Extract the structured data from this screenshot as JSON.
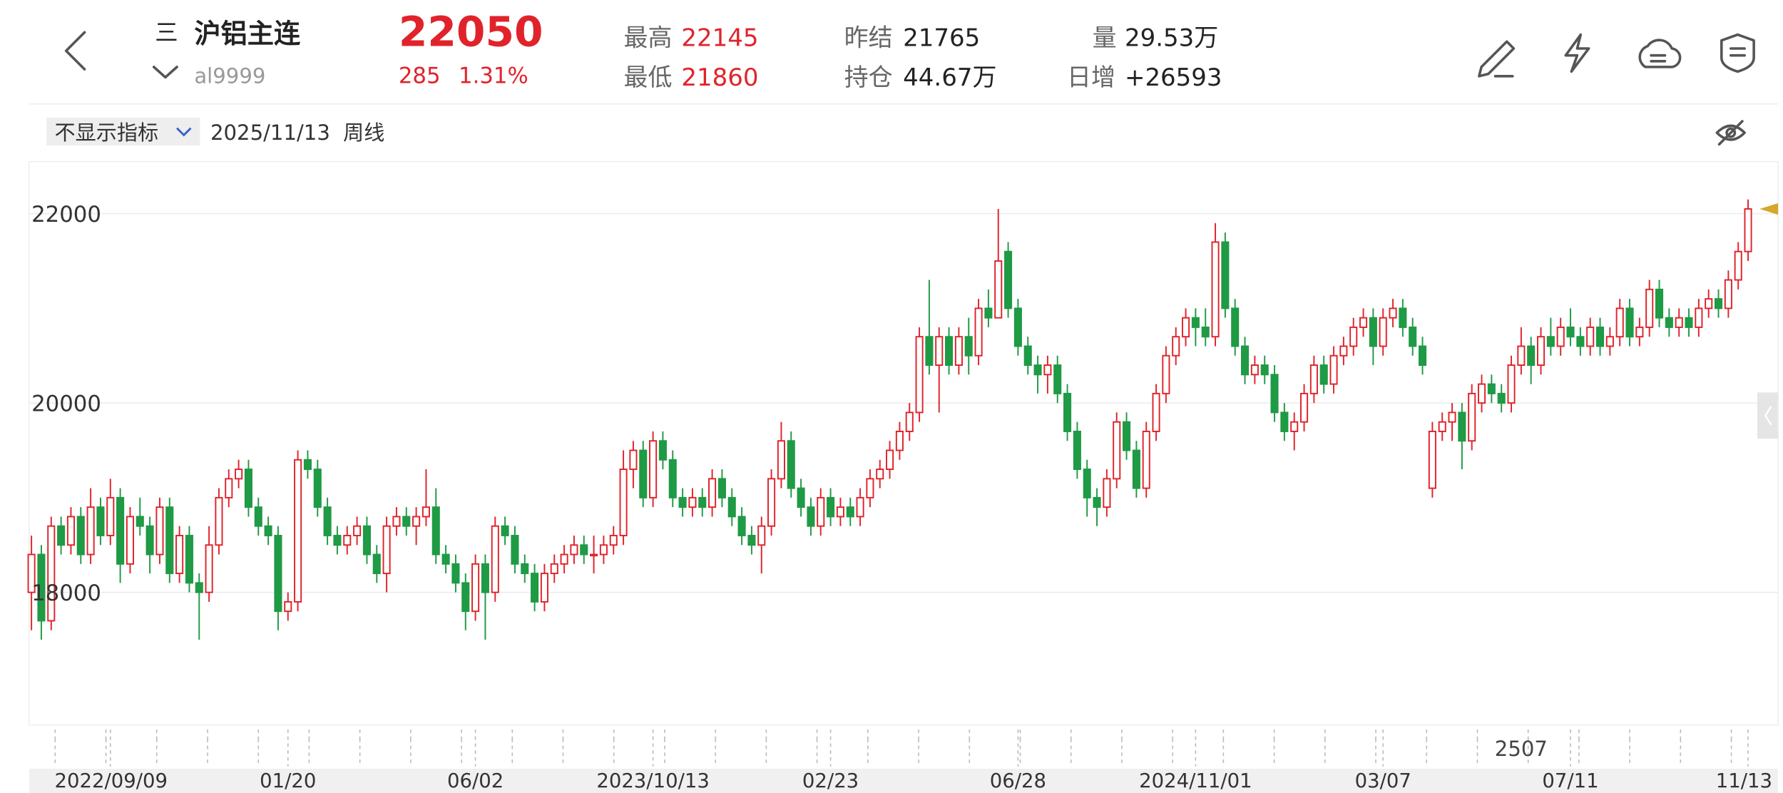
{
  "header": {
    "menu_icon": "三",
    "name": "沪铝主连",
    "code": "al9999",
    "price": 22050,
    "change": 285,
    "change_pct": "1.31%",
    "stats": [
      {
        "label": "最高",
        "value": 22145
      },
      {
        "label": "最低",
        "value": 21860
      },
      {
        "label": "昨结",
        "value": 21765
      },
      {
        "label": "持仓",
        "value": "44.67万"
      },
      {
        "label": "量",
        "value": "29.53万"
      },
      {
        "label": "日增",
        "value": "+26593"
      }
    ]
  },
  "toolbar": {
    "indicator": "不显示指标",
    "date": "2025/11/13",
    "period": "周线"
  },
  "chart_data": {
    "type": "candlestick",
    "up_color": "#e0232b",
    "down_color": "#1f9a45",
    "ylim": [
      16600,
      22550
    ],
    "yticks": [
      18000,
      20000,
      22000
    ],
    "grid": true,
    "xticks": [
      {
        "value": 8,
        "label": "2022/09/09"
      },
      {
        "value": 26,
        "label": "01/20"
      },
      {
        "value": 45,
        "label": "06/02"
      },
      {
        "value": 63,
        "label": "2023/10/13"
      },
      {
        "value": 81,
        "label": "02/23"
      },
      {
        "value": 100,
        "label": "06/28"
      },
      {
        "value": 118,
        "label": "2024/11/01"
      },
      {
        "value": 137,
        "label": "03/07"
      },
      {
        "value": 156,
        "label": "07/11"
      },
      {
        "value": 174,
        "label": "11/13"
      }
    ],
    "annotations": [
      {
        "value": 151,
        "label": "2507"
      }
    ],
    "candles": [
      [
        18000,
        18600,
        17600,
        18400
      ],
      [
        18400,
        18500,
        17500,
        17700
      ],
      [
        17700,
        18800,
        17600,
        18700
      ],
      [
        18700,
        18800,
        18400,
        18500
      ],
      [
        18500,
        18900,
        18400,
        18800
      ],
      [
        18800,
        18900,
        18300,
        18400
      ],
      [
        18400,
        19100,
        18300,
        18900
      ],
      [
        18900,
        19000,
        18500,
        18600
      ],
      [
        18600,
        19200,
        18500,
        19000
      ],
      [
        19000,
        19100,
        18100,
        18300
      ],
      [
        18300,
        18900,
        18200,
        18800
      ],
      [
        18800,
        19000,
        18600,
        18700
      ],
      [
        18700,
        18800,
        18200,
        18400
      ],
      [
        18400,
        19000,
        18300,
        18900
      ],
      [
        18900,
        19000,
        18100,
        18200
      ],
      [
        18200,
        18700,
        18100,
        18600
      ],
      [
        18600,
        18700,
        18000,
        18100
      ],
      [
        18100,
        18200,
        17500,
        18000
      ],
      [
        18000,
        18700,
        17900,
        18500
      ],
      [
        18500,
        19100,
        18400,
        19000
      ],
      [
        19000,
        19300,
        18900,
        19200
      ],
      [
        19200,
        19400,
        19100,
        19300
      ],
      [
        19300,
        19400,
        18800,
        18900
      ],
      [
        18900,
        19000,
        18600,
        18700
      ],
      [
        18700,
        18800,
        18500,
        18600
      ],
      [
        18600,
        18700,
        17600,
        17800
      ],
      [
        17800,
        18000,
        17700,
        17900
      ],
      [
        17900,
        19500,
        17800,
        19400
      ],
      [
        19400,
        19500,
        19200,
        19300
      ],
      [
        19300,
        19400,
        18800,
        18900
      ],
      [
        18900,
        19000,
        18500,
        18600
      ],
      [
        18600,
        18700,
        18400,
        18500
      ],
      [
        18500,
        18700,
        18400,
        18600
      ],
      [
        18600,
        18800,
        18500,
        18700
      ],
      [
        18700,
        18800,
        18300,
        18400
      ],
      [
        18400,
        18500,
        18100,
        18200
      ],
      [
        18200,
        18800,
        18000,
        18700
      ],
      [
        18700,
        18900,
        18600,
        18800
      ],
      [
        18800,
        18900,
        18600,
        18700
      ],
      [
        18700,
        18900,
        18500,
        18800
      ],
      [
        18800,
        19300,
        18700,
        18900
      ],
      [
        18900,
        19100,
        18300,
        18400
      ],
      [
        18400,
        18500,
        18200,
        18300
      ],
      [
        18300,
        18400,
        18000,
        18100
      ],
      [
        18100,
        18200,
        17600,
        17800
      ],
      [
        17800,
        18400,
        17700,
        18300
      ],
      [
        18300,
        18400,
        17500,
        18000
      ],
      [
        18000,
        18800,
        17900,
        18700
      ],
      [
        18700,
        18800,
        18500,
        18600
      ],
      [
        18600,
        18700,
        18200,
        18300
      ],
      [
        18300,
        18400,
        18100,
        18200
      ],
      [
        18200,
        18300,
        17800,
        17900
      ],
      [
        17900,
        18300,
        17800,
        18200
      ],
      [
        18200,
        18400,
        18100,
        18300
      ],
      [
        18300,
        18500,
        18200,
        18400
      ],
      [
        18400,
        18600,
        18300,
        18500
      ],
      [
        18500,
        18600,
        18300,
        18400
      ],
      [
        18400,
        18600,
        18200,
        18400
      ],
      [
        18400,
        18600,
        18300,
        18500
      ],
      [
        18500,
        18700,
        18400,
        18600
      ],
      [
        18600,
        19500,
        18500,
        19300
      ],
      [
        19300,
        19600,
        19100,
        19500
      ],
      [
        19500,
        19600,
        18900,
        19000
      ],
      [
        19000,
        19700,
        18900,
        19600
      ],
      [
        19600,
        19700,
        19300,
        19400
      ],
      [
        19400,
        19500,
        18900,
        19000
      ],
      [
        19000,
        19100,
        18800,
        18900
      ],
      [
        18900,
        19100,
        18800,
        19000
      ],
      [
        19000,
        19100,
        18800,
        18900
      ],
      [
        18900,
        19300,
        18800,
        19200
      ],
      [
        19200,
        19300,
        18900,
        19000
      ],
      [
        19000,
        19100,
        18700,
        18800
      ],
      [
        18800,
        18900,
        18500,
        18600
      ],
      [
        18600,
        18700,
        18400,
        18500
      ],
      [
        18500,
        18800,
        18200,
        18700
      ],
      [
        18700,
        19300,
        18600,
        19200
      ],
      [
        19200,
        19800,
        19100,
        19600
      ],
      [
        19600,
        19700,
        19000,
        19100
      ],
      [
        19100,
        19200,
        18800,
        18900
      ],
      [
        18900,
        19000,
        18600,
        18700
      ],
      [
        18700,
        19100,
        18600,
        19000
      ],
      [
        19000,
        19100,
        18700,
        18800
      ],
      [
        18800,
        19000,
        18700,
        18900
      ],
      [
        18900,
        19000,
        18700,
        18800
      ],
      [
        18800,
        19100,
        18700,
        19000
      ],
      [
        19000,
        19300,
        18900,
        19200
      ],
      [
        19200,
        19400,
        19100,
        19300
      ],
      [
        19300,
        19600,
        19200,
        19500
      ],
      [
        19500,
        19800,
        19400,
        19700
      ],
      [
        19700,
        20000,
        19600,
        19900
      ],
      [
        19900,
        20800,
        19800,
        20700
      ],
      [
        20700,
        21300,
        20300,
        20400
      ],
      [
        20400,
        20800,
        19900,
        20700
      ],
      [
        20700,
        20800,
        20300,
        20400
      ],
      [
        20400,
        20800,
        20300,
        20700
      ],
      [
        20700,
        20900,
        20300,
        20500
      ],
      [
        20500,
        21100,
        20400,
        21000
      ],
      [
        21000,
        21200,
        20800,
        20900
      ],
      [
        20900,
        22050,
        20900,
        21500
      ],
      [
        21600,
        21700,
        20900,
        21000
      ],
      [
        21000,
        21100,
        20500,
        20600
      ],
      [
        20600,
        20700,
        20300,
        20400
      ],
      [
        20400,
        20500,
        20100,
        20300
      ],
      [
        20300,
        20500,
        20100,
        20400
      ],
      [
        20400,
        20500,
        20000,
        20100
      ],
      [
        20100,
        20200,
        19600,
        19700
      ],
      [
        19700,
        19800,
        19200,
        19300
      ],
      [
        19300,
        19400,
        18800,
        19000
      ],
      [
        19000,
        19100,
        18700,
        18900
      ],
      [
        18900,
        19300,
        18800,
        19200
      ],
      [
        19200,
        19900,
        19100,
        19800
      ],
      [
        19800,
        19900,
        19400,
        19500
      ],
      [
        19500,
        19600,
        19000,
        19100
      ],
      [
        19100,
        19800,
        19000,
        19700
      ],
      [
        19700,
        20200,
        19600,
        20100
      ],
      [
        20100,
        20600,
        20000,
        20500
      ],
      [
        20500,
        20800,
        20400,
        20700
      ],
      [
        20700,
        21000,
        20600,
        20900
      ],
      [
        20900,
        21000,
        20600,
        20800
      ],
      [
        20800,
        21000,
        20600,
        20700
      ],
      [
        20700,
        21900,
        20600,
        21700
      ],
      [
        21700,
        21800,
        20900,
        21000
      ],
      [
        21000,
        21100,
        20500,
        20600
      ],
      [
        20600,
        20700,
        20200,
        20300
      ],
      [
        20300,
        20500,
        20200,
        20400
      ],
      [
        20400,
        20500,
        20200,
        20300
      ],
      [
        20300,
        20400,
        19800,
        19900
      ],
      [
        19900,
        20000,
        19600,
        19700
      ],
      [
        19700,
        19900,
        19500,
        19800
      ],
      [
        19800,
        20200,
        19700,
        20100
      ],
      [
        20100,
        20500,
        20000,
        20400
      ],
      [
        20400,
        20500,
        20100,
        20200
      ],
      [
        20200,
        20600,
        20100,
        20500
      ],
      [
        20500,
        20700,
        20400,
        20600
      ],
      [
        20600,
        20900,
        20500,
        20800
      ],
      [
        20800,
        21000,
        20700,
        20900
      ],
      [
        20900,
        21000,
        20400,
        20600
      ],
      [
        20600,
        21000,
        20500,
        20900
      ],
      [
        20900,
        21100,
        20800,
        21000
      ],
      [
        21000,
        21100,
        20700,
        20800
      ],
      [
        20800,
        20900,
        20500,
        20600
      ],
      [
        20600,
        20700,
        20300,
        20400
      ],
      [
        19100,
        19800,
        19000,
        19700
      ],
      [
        19700,
        19900,
        19600,
        19800
      ],
      [
        19800,
        20000,
        19600,
        19900
      ],
      [
        19900,
        20000,
        19300,
        19600
      ],
      [
        19600,
        20200,
        19500,
        20100
      ],
      [
        20000,
        20300,
        19900,
        20200
      ],
      [
        20200,
        20300,
        20000,
        20100
      ],
      [
        20100,
        20200,
        19900,
        20000
      ],
      [
        20000,
        20500,
        19900,
        20400
      ],
      [
        20400,
        20800,
        20300,
        20600
      ],
      [
        20600,
        20700,
        20200,
        20400
      ],
      [
        20400,
        20800,
        20300,
        20700
      ],
      [
        20700,
        20900,
        20500,
        20600
      ],
      [
        20600,
        20900,
        20500,
        20800
      ],
      [
        20800,
        21000,
        20600,
        20700
      ],
      [
        20700,
        20800,
        20500,
        20600
      ],
      [
        20600,
        20900,
        20500,
        20800
      ],
      [
        20800,
        20900,
        20500,
        20600
      ],
      [
        20600,
        20800,
        20500,
        20700
      ],
      [
        20700,
        21100,
        20600,
        21000
      ],
      [
        21000,
        21100,
        20600,
        20700
      ],
      [
        20700,
        20900,
        20600,
        20800
      ],
      [
        20800,
        21300,
        20700,
        21200
      ],
      [
        21200,
        21300,
        20800,
        20900
      ],
      [
        20900,
        21000,
        20700,
        20800
      ],
      [
        20800,
        21000,
        20700,
        20900
      ],
      [
        20900,
        21000,
        20700,
        20800
      ],
      [
        20800,
        21100,
        20700,
        21000
      ],
      [
        21000,
        21200,
        20900,
        21100
      ],
      [
        21100,
        21200,
        20900,
        21000
      ],
      [
        21000,
        21400,
        20900,
        21300
      ],
      [
        21300,
        21700,
        21200,
        21600
      ],
      [
        21600,
        22150,
        21500,
        22050
      ]
    ]
  }
}
